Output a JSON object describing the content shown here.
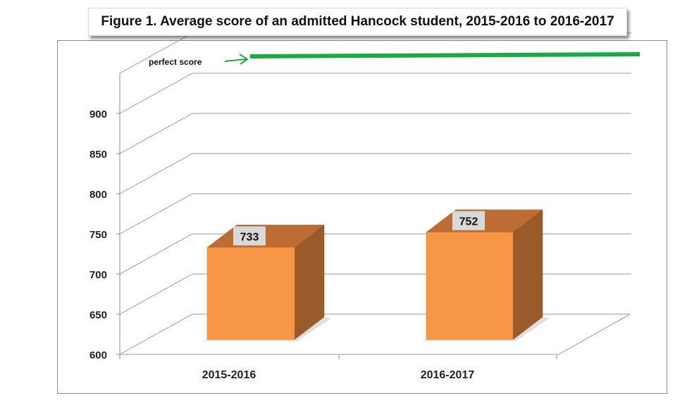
{
  "chart_data": {
    "type": "bar",
    "title": "Figure 1. Average score of an admitted Hancock student, 2015-2016 to 2016-2017",
    "categories": [
      "2015-2016",
      "2016-2017"
    ],
    "values": [
      733,
      752
    ],
    "ylim": [
      600,
      900
    ],
    "yticks": [
      600,
      650,
      700,
      750,
      800,
      850,
      900
    ],
    "grid": true,
    "bar_color": "#f79646",
    "reference_line": {
      "label": "perfect score",
      "color": "#1aab40"
    }
  }
}
